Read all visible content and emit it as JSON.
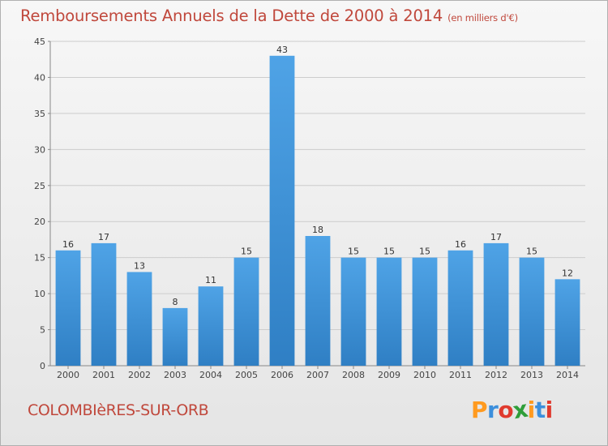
{
  "header": {
    "title": "Remboursements Annuels de la Dette de 2000 à 2014",
    "unit": "(en milliers d'€)"
  },
  "footer": {
    "commune": "COLOMBIèRES-SUR-ORB",
    "logo_letters": [
      "P",
      "r",
      "o",
      "x",
      "i",
      "t",
      "i"
    ],
    "logo_colors": [
      "#ff9a1f",
      "#3c8fdc",
      "#e03a2e",
      "#2f9e3a",
      "#ff9a1f",
      "#3c8fdc",
      "#e03a2e"
    ]
  },
  "colors": {
    "bar": "#4fa3e6",
    "bar_dark": "#2f7fc4",
    "title": "#c0483c",
    "grid": "#cccccc"
  },
  "chart_data": {
    "type": "bar",
    "categories": [
      "2000",
      "2001",
      "2002",
      "2003",
      "2004",
      "2005",
      "2006",
      "2007",
      "2008",
      "2009",
      "2010",
      "2011",
      "2012",
      "2013",
      "2014"
    ],
    "values": [
      16,
      17,
      13,
      8,
      11,
      15,
      43,
      18,
      15,
      15,
      15,
      16,
      17,
      15,
      12
    ],
    "ylim": [
      0,
      45
    ],
    "yticks": [
      0,
      5,
      10,
      15,
      20,
      25,
      30,
      35,
      40,
      45
    ],
    "grid": true,
    "data_labels": true
  }
}
